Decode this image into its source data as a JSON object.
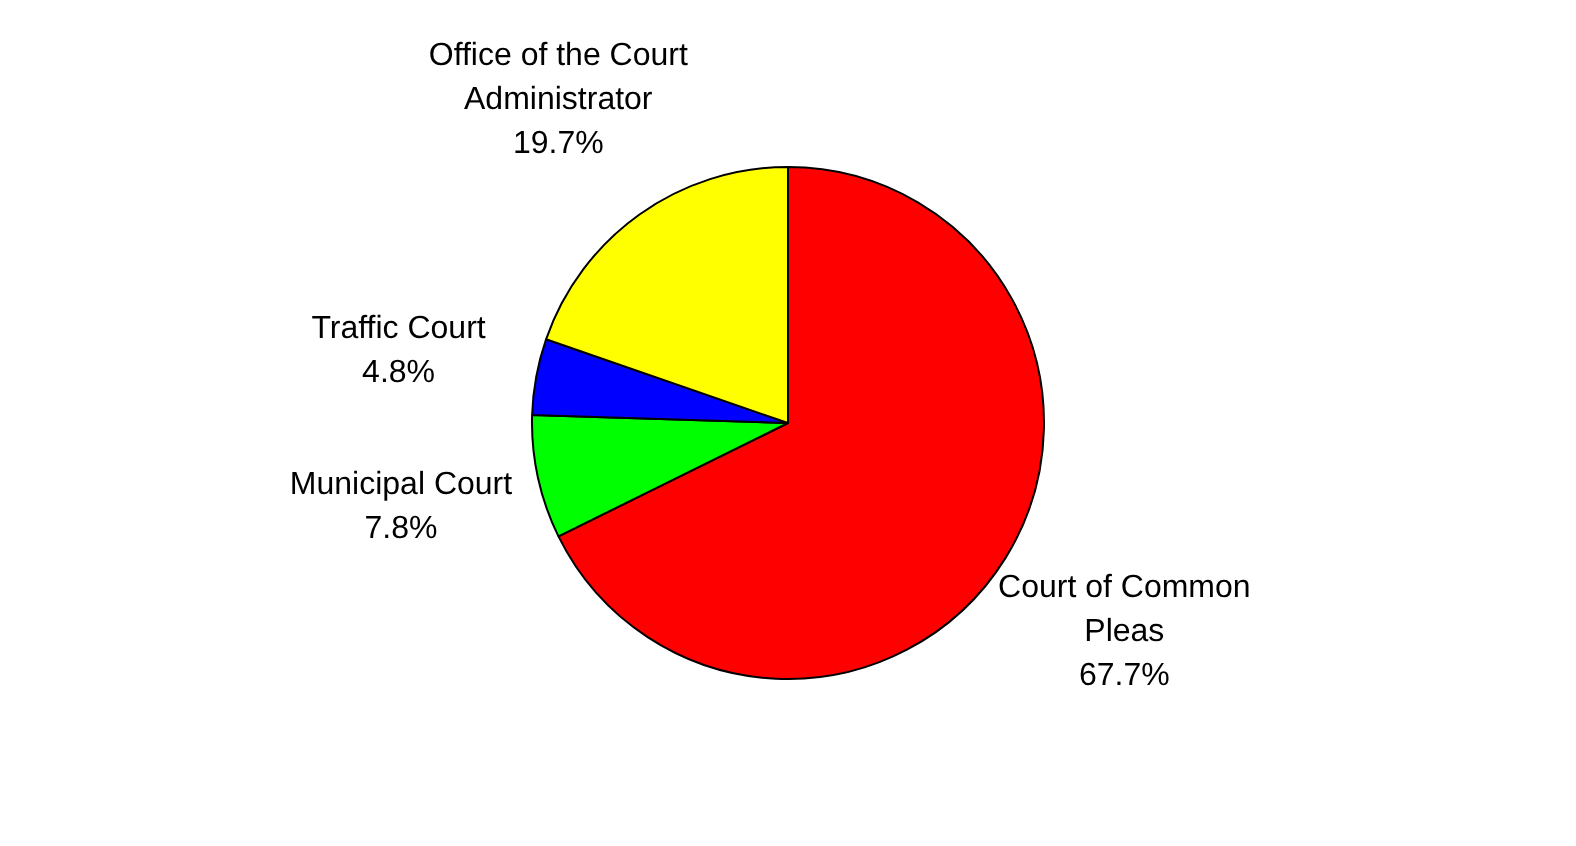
{
  "chart_data": {
    "type": "pie",
    "categories": [
      "Court of Common Pleas",
      "Municipal Court",
      "Traffic Court",
      "Office of the Court Administrator"
    ],
    "values": [
      67.7,
      7.8,
      4.8,
      19.7
    ],
    "colors": [
      "#ff0000",
      "#00ff00",
      "#0000ff",
      "#ffff00"
    ],
    "value_labels": [
      "67.7%",
      "7.8%",
      "4.8%",
      "19.7%"
    ],
    "legend": false
  }
}
